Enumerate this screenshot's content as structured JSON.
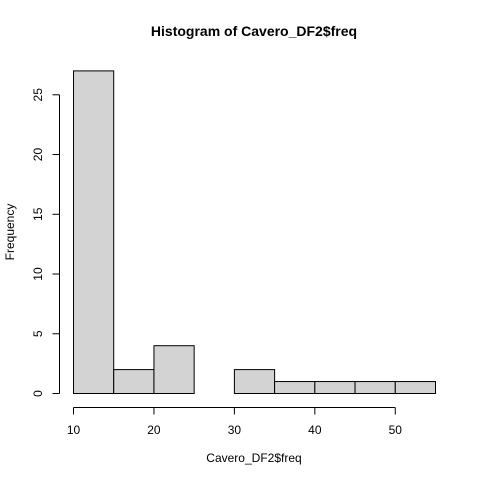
{
  "chart_data": {
    "type": "bar",
    "title": "Histogram of Cavero_DF2$freq",
    "xlabel": "Cavero_DF2$freq",
    "ylabel": "Frequency",
    "bins": [
      {
        "start": 10,
        "end": 15,
        "count": 27
      },
      {
        "start": 15,
        "end": 20,
        "count": 2
      },
      {
        "start": 20,
        "end": 25,
        "count": 4
      },
      {
        "start": 25,
        "end": 30,
        "count": 0
      },
      {
        "start": 30,
        "end": 35,
        "count": 2
      },
      {
        "start": 35,
        "end": 40,
        "count": 1
      },
      {
        "start": 40,
        "end": 45,
        "count": 1
      },
      {
        "start": 45,
        "end": 50,
        "count": 1
      },
      {
        "start": 50,
        "end": 55,
        "count": 1
      }
    ],
    "xlim": [
      10,
      55
    ],
    "ylim": [
      0,
      27
    ],
    "x_ticks": [
      "10",
      "20",
      "30",
      "40",
      "50"
    ],
    "y_ticks": [
      "0",
      "5",
      "10",
      "15",
      "20",
      "25"
    ],
    "bar_color": "#d3d3d3",
    "grid": false
  }
}
